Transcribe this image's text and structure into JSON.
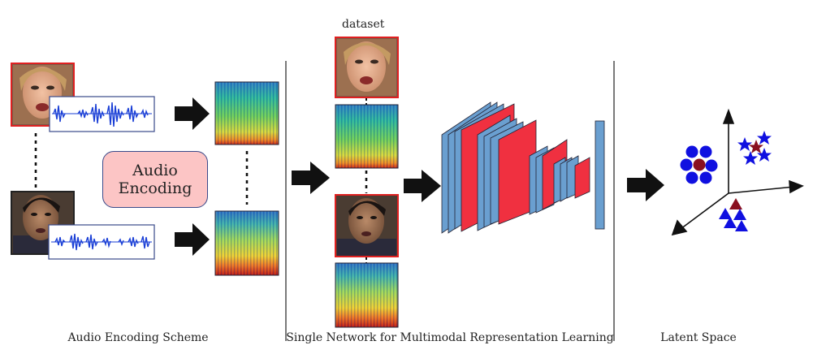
{
  "top_label": "dataset",
  "audio_box": {
    "line1": "Audio",
    "line2": "Encoding"
  },
  "captions": {
    "left": "Audio Encoding Scheme",
    "middle": "Single Network for Multimodal Representation Learning",
    "right": "Latent Space"
  },
  "colors": {
    "face_border": "#e02020",
    "dark_border": "#222222",
    "waveform": "#1a3fd6",
    "arrow": "#111111",
    "network_blue": "#6a9fd0",
    "network_red": "#f03040",
    "latent_blue": "#1010e0",
    "latent_red": "#8a1020",
    "audio_box_fill": "#fcc5c5"
  },
  "icons": [
    "female-face-icon",
    "male-face-icon",
    "waveform-icon",
    "spectrogram-icon",
    "arrow-right-icon"
  ]
}
